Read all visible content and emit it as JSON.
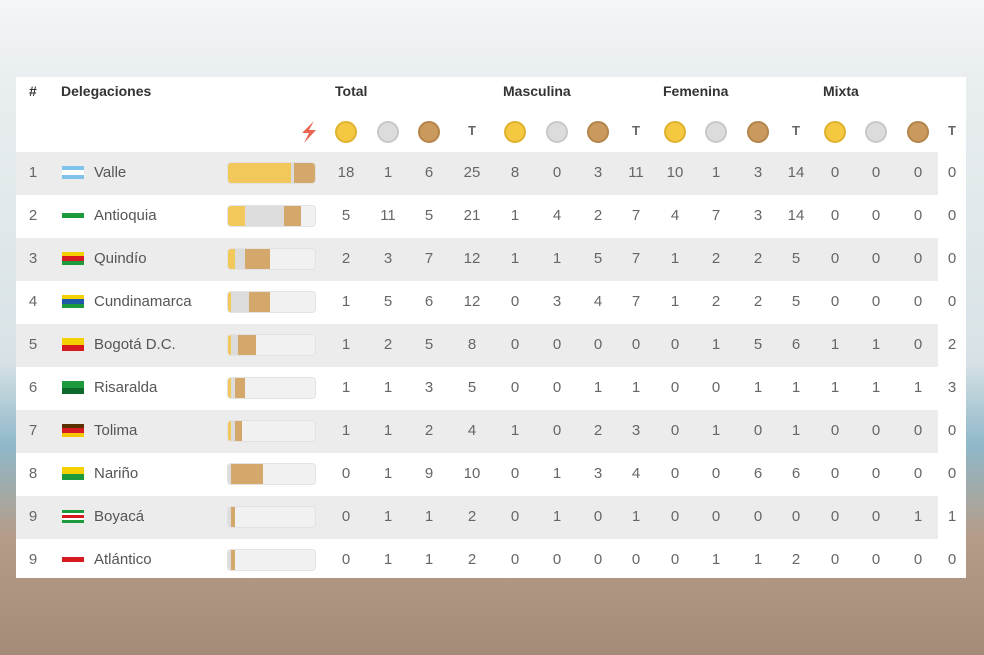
{
  "table": {
    "headers": {
      "rank": "#",
      "delegation": "Delegaciones",
      "groups": [
        "Total",
        "Masculina",
        "Femenina",
        "Mixta"
      ],
      "total_short": "T"
    },
    "rows": [
      {
        "rank": 1,
        "name": "Valle",
        "total": [
          18,
          1,
          6,
          25
        ],
        "masculina": [
          8,
          0,
          3,
          11
        ],
        "femenina": [
          10,
          1,
          3,
          14
        ],
        "mixta": [
          0,
          0,
          0,
          0
        ]
      },
      {
        "rank": 2,
        "name": "Antioquia",
        "total": [
          5,
          11,
          5,
          21
        ],
        "masculina": [
          1,
          4,
          2,
          7
        ],
        "femenina": [
          4,
          7,
          3,
          14
        ],
        "mixta": [
          0,
          0,
          0,
          0
        ]
      },
      {
        "rank": 3,
        "name": "Quindío",
        "total": [
          2,
          3,
          7,
          12
        ],
        "masculina": [
          1,
          1,
          5,
          7
        ],
        "femenina": [
          1,
          2,
          2,
          5
        ],
        "mixta": [
          0,
          0,
          0,
          0
        ]
      },
      {
        "rank": 4,
        "name": "Cundinamarca",
        "total": [
          1,
          5,
          6,
          12
        ],
        "masculina": [
          0,
          3,
          4,
          7
        ],
        "femenina": [
          1,
          2,
          2,
          5
        ],
        "mixta": [
          0,
          0,
          0,
          0
        ]
      },
      {
        "rank": 5,
        "name": "Bogotá D.C.",
        "total": [
          1,
          2,
          5,
          8
        ],
        "masculina": [
          0,
          0,
          0,
          0
        ],
        "femenina": [
          0,
          1,
          5,
          6
        ],
        "mixta": [
          1,
          1,
          0,
          2
        ]
      },
      {
        "rank": 6,
        "name": "Risaralda",
        "total": [
          1,
          1,
          3,
          5
        ],
        "masculina": [
          0,
          0,
          1,
          1
        ],
        "femenina": [
          0,
          0,
          1,
          1
        ],
        "mixta": [
          1,
          1,
          1,
          3
        ]
      },
      {
        "rank": 7,
        "name": "Tolima",
        "total": [
          1,
          1,
          2,
          4
        ],
        "masculina": [
          1,
          0,
          2,
          3
        ],
        "femenina": [
          0,
          1,
          0,
          1
        ],
        "mixta": [
          0,
          0,
          0,
          0
        ]
      },
      {
        "rank": 8,
        "name": "Nariño",
        "total": [
          0,
          1,
          9,
          10
        ],
        "masculina": [
          0,
          1,
          3,
          4
        ],
        "femenina": [
          0,
          0,
          6,
          6
        ],
        "mixta": [
          0,
          0,
          0,
          0
        ]
      },
      {
        "rank": 9,
        "name": "Boyacá",
        "total": [
          0,
          1,
          1,
          2
        ],
        "masculina": [
          0,
          1,
          0,
          1
        ],
        "femenina": [
          0,
          0,
          0,
          0
        ],
        "mixta": [
          0,
          0,
          1,
          1
        ]
      },
      {
        "rank": 9,
        "name": "Atlántico",
        "total": [
          0,
          1,
          1,
          2
        ],
        "masculina": [
          0,
          0,
          0,
          0
        ],
        "femenina": [
          0,
          1,
          1,
          2
        ],
        "mixta": [
          0,
          0,
          0,
          0
        ]
      }
    ]
  }
}
